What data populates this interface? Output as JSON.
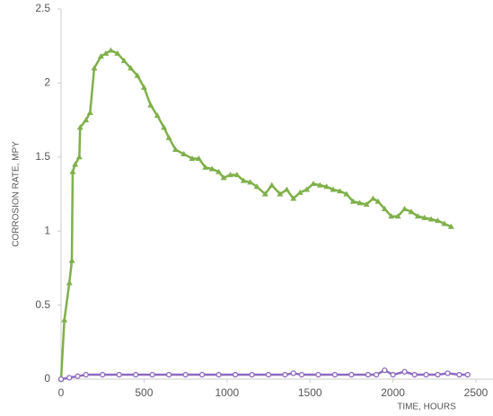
{
  "chart_data": {
    "type": "line",
    "xlabel": "TIME, HOURS",
    "ylabel": "CORROSION RATE, MPY",
    "xlim": [
      0,
      2500
    ],
    "xticks": [
      0,
      500,
      1000,
      1500,
      2000,
      2500
    ],
    "ylim": [
      0,
      2.5
    ],
    "yticks": [
      0,
      0.5,
      1,
      1.5,
      2,
      2.5
    ],
    "grid": false,
    "series": [
      {
        "color": "#7fb04a",
        "marker": "triangle",
        "x": [
          0,
          20,
          50,
          65,
          70,
          85,
          110,
          115,
          150,
          175,
          200,
          240,
          270,
          300,
          340,
          380,
          420,
          460,
          500,
          540,
          580,
          620,
          650,
          690,
          740,
          790,
          830,
          870,
          910,
          950,
          980,
          1020,
          1060,
          1100,
          1140,
          1180,
          1230,
          1270,
          1320,
          1360,
          1400,
          1440,
          1480,
          1520,
          1560,
          1600,
          1640,
          1680,
          1720,
          1760,
          1800,
          1840,
          1880,
          1910,
          1950,
          1990,
          2030,
          2070,
          2110,
          2150,
          2190,
          2230,
          2270,
          2310,
          2350
        ],
        "values": [
          0,
          0.4,
          0.65,
          0.8,
          1.4,
          1.45,
          1.5,
          1.7,
          1.75,
          1.8,
          2.1,
          2.18,
          2.2,
          2.22,
          2.2,
          2.15,
          2.1,
          2.05,
          1.97,
          1.85,
          1.78,
          1.7,
          1.63,
          1.55,
          1.52,
          1.49,
          1.49,
          1.43,
          1.42,
          1.4,
          1.36,
          1.38,
          1.38,
          1.34,
          1.33,
          1.3,
          1.25,
          1.31,
          1.25,
          1.28,
          1.22,
          1.26,
          1.28,
          1.32,
          1.31,
          1.3,
          1.28,
          1.27,
          1.25,
          1.2,
          1.19,
          1.18,
          1.22,
          1.2,
          1.15,
          1.1,
          1.1,
          1.15,
          1.13,
          1.1,
          1.09,
          1.08,
          1.07,
          1.05,
          1.03
        ]
      },
      {
        "color": "#8e6bbf",
        "marker": "circle",
        "x": [
          0,
          50,
          100,
          150,
          250,
          350,
          450,
          550,
          650,
          750,
          850,
          950,
          1050,
          1150,
          1250,
          1350,
          1400,
          1450,
          1550,
          1650,
          1750,
          1850,
          1900,
          1950,
          2000,
          2070,
          2130,
          2200,
          2270,
          2330,
          2400,
          2450
        ],
        "values": [
          0,
          0.01,
          0.02,
          0.03,
          0.03,
          0.03,
          0.03,
          0.03,
          0.03,
          0.03,
          0.03,
          0.03,
          0.03,
          0.03,
          0.03,
          0.03,
          0.04,
          0.03,
          0.03,
          0.03,
          0.03,
          0.03,
          0.03,
          0.06,
          0.03,
          0.05,
          0.03,
          0.03,
          0.03,
          0.04,
          0.03,
          0.03
        ]
      }
    ]
  }
}
